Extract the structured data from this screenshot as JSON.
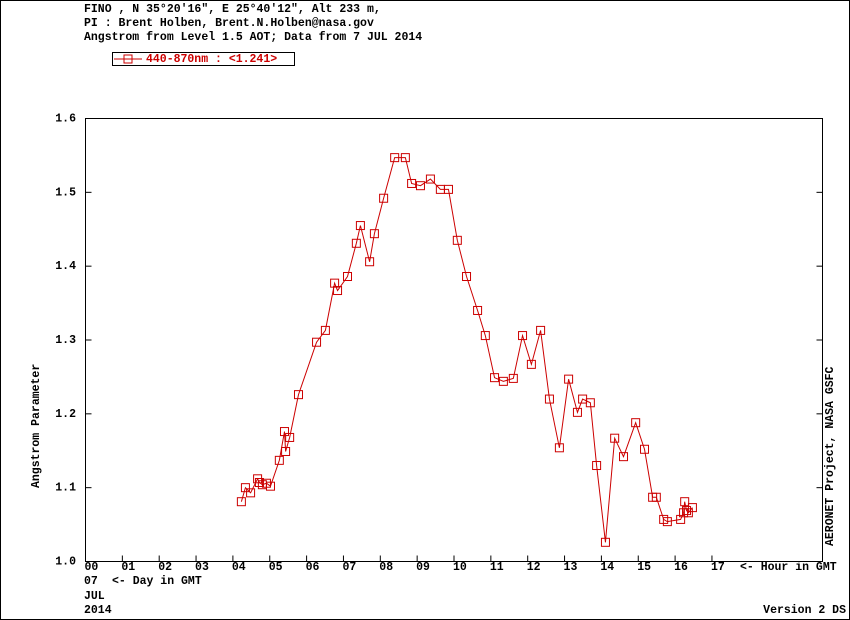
{
  "chart_data": {
    "type": "line",
    "header": [
      "FINO , N 35°20'16\", E 25°40'12\", Alt 233 m,",
      "PI : Brent Holben, Brent.N.Holben@nasa.gov",
      "Angstrom from Level 1.5 AOT; Data from 7 JUL 2014"
    ],
    "ylabel": "Angstrom Parameter",
    "xlabel": "<- Hour in GMT",
    "day": "07",
    "day_note": "<- Day in GMT",
    "month": "JUL",
    "year": "2014",
    "side_note": "AERONET Project, NASA GSFC",
    "version": "Version 2 DS",
    "xlim": [
      0,
      20
    ],
    "xticks": [
      {
        "value": 0,
        "label": "00"
      },
      {
        "value": 1,
        "label": "01"
      },
      {
        "value": 2,
        "label": "02"
      },
      {
        "value": 3,
        "label": "03"
      },
      {
        "value": 4,
        "label": "04"
      },
      {
        "value": 5,
        "label": "05"
      },
      {
        "value": 6,
        "label": "06"
      },
      {
        "value": 7,
        "label": "07"
      },
      {
        "value": 8,
        "label": "08"
      },
      {
        "value": 9,
        "label": "09"
      },
      {
        "value": 10,
        "label": "10"
      },
      {
        "value": 11,
        "label": "11"
      },
      {
        "value": 12,
        "label": "12"
      },
      {
        "value": 13,
        "label": "13"
      },
      {
        "value": 14,
        "label": "14"
      },
      {
        "value": 15,
        "label": "15"
      },
      {
        "value": 16,
        "label": "16"
      },
      {
        "value": 17,
        "label": "17"
      }
    ],
    "ylim": [
      1.0,
      1.6
    ],
    "yticks": [
      {
        "value": 1.0,
        "label": "1.0"
      },
      1.1,
      1.2,
      1.3,
      1.4,
      1.5,
      1.6
    ],
    "x": [
      4.23,
      4.34,
      4.48,
      4.67,
      4.72,
      4.8,
      4.91,
      5.02,
      5.26,
      5.4,
      5.43,
      5.54,
      5.78,
      6.27,
      6.51,
      6.76,
      6.84,
      7.11,
      7.35,
      7.46,
      7.71,
      7.84,
      8.09,
      8.39,
      8.68,
      8.85,
      9.09,
      9.36,
      9.63,
      9.85,
      10.09,
      10.34,
      10.64,
      10.85,
      11.1,
      11.34,
      11.61,
      11.86,
      12.1,
      12.35,
      12.59,
      12.86,
      13.11,
      13.35,
      13.49,
      13.7,
      13.87,
      14.11,
      14.36,
      14.6,
      14.93,
      15.17,
      15.39,
      15.49,
      15.69,
      15.79,
      16.15,
      16.23,
      16.26,
      16.31,
      16.36,
      16.47
    ],
    "series": [
      {
        "name": "440-870nm  : <1.241>",
        "color": "#cc0000",
        "values": [
          1.081,
          1.1,
          1.093,
          1.112,
          1.107,
          1.104,
          1.106,
          1.102,
          1.137,
          1.176,
          1.149,
          1.168,
          1.226,
          1.297,
          1.313,
          1.377,
          1.367,
          1.386,
          1.431,
          1.455,
          1.406,
          1.444,
          1.492,
          1.547,
          1.547,
          1.512,
          1.509,
          1.518,
          1.504,
          1.504,
          1.435,
          1.386,
          1.34,
          1.306,
          1.249,
          1.244,
          1.248,
          1.306,
          1.267,
          1.313,
          1.22,
          1.154,
          1.247,
          1.202,
          1.22,
          1.215,
          1.13,
          1.026,
          1.167,
          1.142,
          1.188,
          1.152,
          1.087,
          1.087,
          1.057,
          1.054,
          1.057,
          1.066,
          1.081,
          1.069,
          1.066,
          1.073
        ]
      }
    ]
  }
}
